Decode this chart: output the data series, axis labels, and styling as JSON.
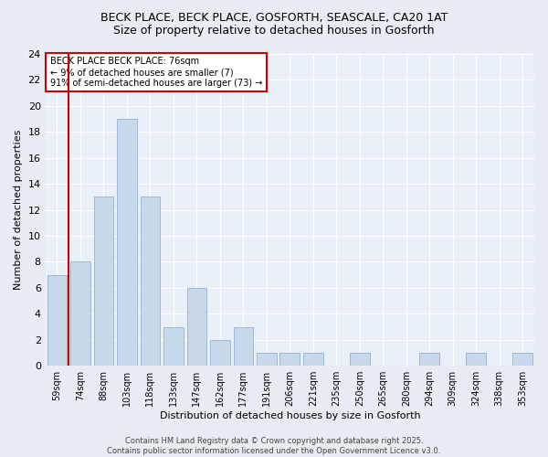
{
  "title1": "BECK PLACE, BECK PLACE, GOSFORTH, SEASCALE, CA20 1AT",
  "title2": "Size of property relative to detached houses in Gosforth",
  "xlabel": "Distribution of detached houses by size in Gosforth",
  "ylabel": "Number of detached properties",
  "categories": [
    "59sqm",
    "74sqm",
    "88sqm",
    "103sqm",
    "118sqm",
    "133sqm",
    "147sqm",
    "162sqm",
    "177sqm",
    "191sqm",
    "206sqm",
    "221sqm",
    "235sqm",
    "250sqm",
    "265sqm",
    "280sqm",
    "294sqm",
    "309sqm",
    "324sqm",
    "338sqm",
    "353sqm"
  ],
  "values": [
    7,
    8,
    13,
    19,
    13,
    3,
    6,
    2,
    3,
    1,
    1,
    1,
    0,
    1,
    0,
    0,
    1,
    0,
    1,
    0,
    1
  ],
  "bar_color": "#c8d9ec",
  "bar_edge_color": "#9db8d8",
  "vline_color": "#cc0000",
  "annotation_text": "BECK PLACE BECK PLACE: 76sqm\n← 9% of detached houses are smaller (7)\n91% of semi-detached houses are larger (73) →",
  "annotation_box_color": "#ffffff",
  "annotation_box_edge": "#cc0000",
  "ylim": [
    0,
    24
  ],
  "yticks": [
    0,
    2,
    4,
    6,
    8,
    10,
    12,
    14,
    16,
    18,
    20,
    22,
    24
  ],
  "footer": "Contains HM Land Registry data © Crown copyright and database right 2025.\nContains public sector information licensed under the Open Government Licence v3.0.",
  "bg_color": "#e8edf4",
  "plot_bg_color": "#eaf0f7",
  "title_fontsize": 9,
  "subtitle_fontsize": 9,
  "axis_label_fontsize": 8,
  "tick_fontsize": 8,
  "xtick_fontsize": 7,
  "annotation_fontsize": 7,
  "footer_fontsize": 6
}
